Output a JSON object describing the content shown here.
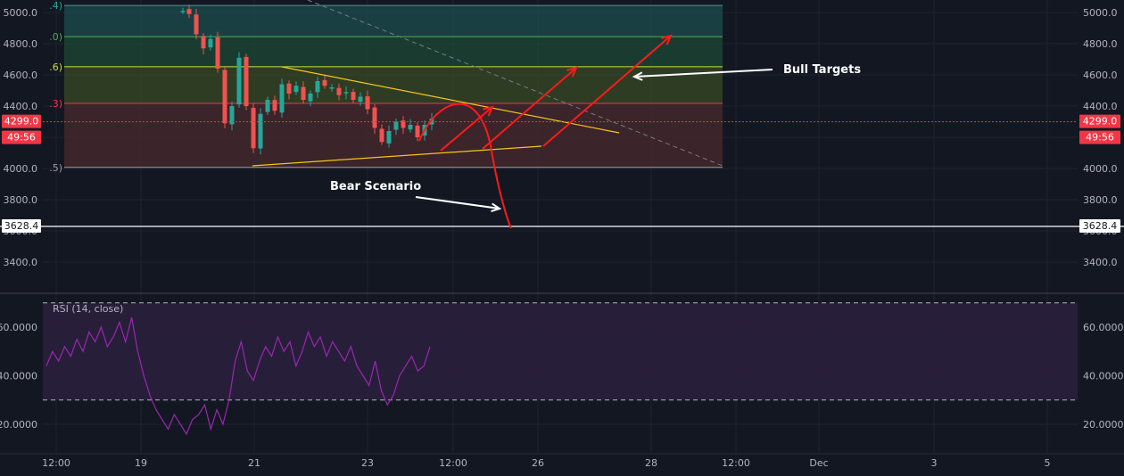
{
  "chart_data": [
    {
      "type": "candlestick",
      "pane": "price",
      "y_ticks": [
        "5000.0",
        "4800.0",
        "4600.0",
        "4400.0",
        "4200.0",
        "4000.0",
        "3800.0",
        "3600.0",
        "3400.0"
      ],
      "ylim": [
        3220,
        5050
      ],
      "x_ticks": [
        "12:00",
        "19",
        "21",
        "23",
        "12:00",
        "26",
        "28",
        "12:00",
        "Dec",
        "3",
        "5"
      ],
      "fib_levels": [
        {
          "label": ".4)",
          "price": 5045,
          "color": "#26a69a"
        },
        {
          "label": ".0)",
          "price": 4845,
          "color": "#4caf50"
        },
        {
          "label": ".6)",
          "price": 4652,
          "color": "#cddc39"
        },
        {
          "label": ".3)",
          "price": 4417,
          "color": "#f23645"
        },
        {
          "label": ".5)",
          "price": 4007,
          "color": "#9e9e9e"
        }
      ],
      "current_price": "4299.0",
      "countdown": "49:56",
      "horizontal_level": "3628.4",
      "annotations": [
        "Bull Targets",
        "Bear Scenario"
      ],
      "colors": {
        "up": "#26a69a",
        "down": "#ef5350",
        "trend": "#f5c518",
        "arrow": "#ff1a1a"
      }
    },
    {
      "type": "line",
      "pane": "rsi",
      "title": "RSI (14, close)",
      "y_ticks": [
        "60.0000",
        "40.0000",
        "20.0000"
      ],
      "ylim": [
        10,
        75
      ],
      "bands": [
        30,
        70
      ],
      "color": "#9c27b0"
    }
  ]
}
